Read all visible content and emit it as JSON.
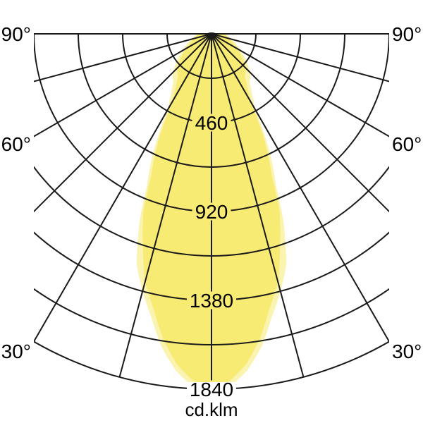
{
  "chart_data": {
    "type": "polar",
    "description": "Luminous intensity distribution curve (photometric polar diagram), beam pointing downward from source at top center",
    "unit_label": "cd.klm",
    "angle_unit": "degrees from nadir",
    "angle_range_deg": [
      -90,
      90
    ],
    "radial_line_step_deg": 15,
    "angle_labels": [
      {
        "text": "90°",
        "deg": 90
      },
      {
        "text": "60°",
        "deg": 60
      },
      {
        "text": "30°",
        "deg": 30
      }
    ],
    "rings_cd": [
      230,
      460,
      690,
      920,
      1150,
      1380,
      1610,
      1840
    ],
    "ring_step_cd": 230,
    "labeled_rings": [
      {
        "text": "460",
        "cd": 460
      },
      {
        "text": "920",
        "cd": 920
      },
      {
        "text": "1380",
        "cd": 1380
      },
      {
        "text": "1840",
        "cd": 1840
      }
    ],
    "max_cd": 1840,
    "grid": "on",
    "colors": {
      "beam_bright": "#f8eb73",
      "beam_pale": "#fbf3b0",
      "grid_line": "#1a1a1a",
      "background": "#ffffff",
      "text": "#000000"
    },
    "series": [
      {
        "name": "beam-pale",
        "points_deg_cd": [
          [
            0,
            1860
          ],
          [
            3,
            1830
          ],
          [
            6,
            1755
          ],
          [
            9,
            1645
          ],
          [
            12,
            1500
          ],
          [
            15,
            1380
          ],
          [
            18,
            1255
          ],
          [
            21,
            1040
          ],
          [
            23,
            855
          ],
          [
            26,
            695
          ],
          [
            28,
            570
          ],
          [
            30,
            450
          ],
          [
            34,
            375
          ],
          [
            38,
            320
          ],
          [
            44,
            290
          ],
          [
            50,
            245
          ],
          [
            60,
            172
          ],
          [
            75,
            104
          ],
          [
            90,
            70
          ]
        ]
      },
      {
        "name": "beam-bright",
        "points_deg_cd": [
          [
            0,
            1830
          ],
          [
            3,
            1800
          ],
          [
            6,
            1720
          ],
          [
            9,
            1600
          ],
          [
            12,
            1450
          ],
          [
            15,
            1330
          ],
          [
            18,
            1150
          ],
          [
            21,
            985
          ],
          [
            23,
            800
          ],
          [
            26,
            640
          ],
          [
            28,
            520
          ],
          [
            30,
            400
          ],
          [
            34,
            330
          ],
          [
            38,
            280
          ],
          [
            44,
            255
          ],
          [
            50,
            215
          ],
          [
            60,
            150
          ],
          [
            75,
            90
          ],
          [
            90,
            60
          ]
        ]
      }
    ]
  }
}
